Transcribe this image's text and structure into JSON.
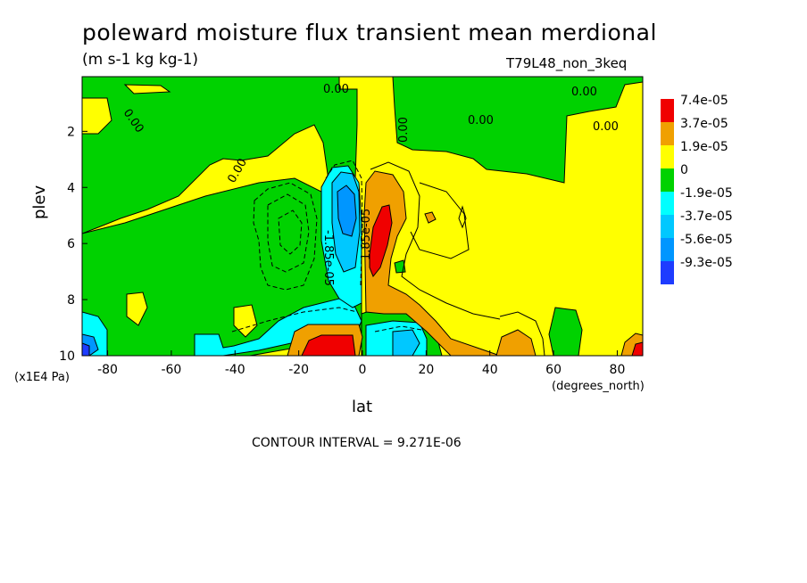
{
  "chart_data": {
    "type": "heatmap",
    "title": "poleward moisture flux transient mean merdional",
    "units": "(m s-1 kg kg-1)",
    "run_label": "T79L48_non_3keq",
    "xlabel": "lat",
    "ylabel": "plev",
    "x_unit_label": "(degrees_north)",
    "y_unit_label": "(x1E4 Pa)",
    "x_ticks": [
      "-80",
      "-60",
      "-40",
      "-20",
      "0",
      "20",
      "40",
      "60",
      "80"
    ],
    "x_tick_values": [
      -80,
      -60,
      -40,
      -20,
      0,
      20,
      40,
      60,
      80
    ],
    "y_ticks": [
      "2",
      "4",
      "6",
      "8",
      "10"
    ],
    "y_tick_values": [
      2,
      4,
      6,
      8,
      10
    ],
    "xlim": [
      -88,
      88
    ],
    "ylim": [
      10,
      0.05
    ],
    "contour_interval_text": "CONTOUR INTERVAL = 9.271E-06",
    "contour_labels": [
      "0.00",
      "0.00",
      "0.00",
      "0.00",
      "0.00",
      "0.00",
      "0.00",
      "-1.85e-05",
      "1.85e-05"
    ],
    "legend": {
      "levels": [
        "7.4e-05",
        "3.7e-05",
        "1.9e-05",
        "0",
        "-1.9e-05",
        "-3.7e-05",
        "-5.6e-05",
        "-9.3e-05"
      ],
      "colors": [
        "#f00000",
        "#f0a000",
        "#ffff00",
        "#00d200",
        "#00ffff",
        "#00c8ff",
        "#0096ff",
        "#1e3cff"
      ]
    },
    "colors": {
      "red": "#f00000",
      "orange": "#f0a000",
      "yellow": "#ffff00",
      "green": "#00d200",
      "cyan": "#00ffff",
      "lightblue": "#00c8ff",
      "blue": "#0096ff",
      "darkblue": "#1e3cff"
    }
  }
}
